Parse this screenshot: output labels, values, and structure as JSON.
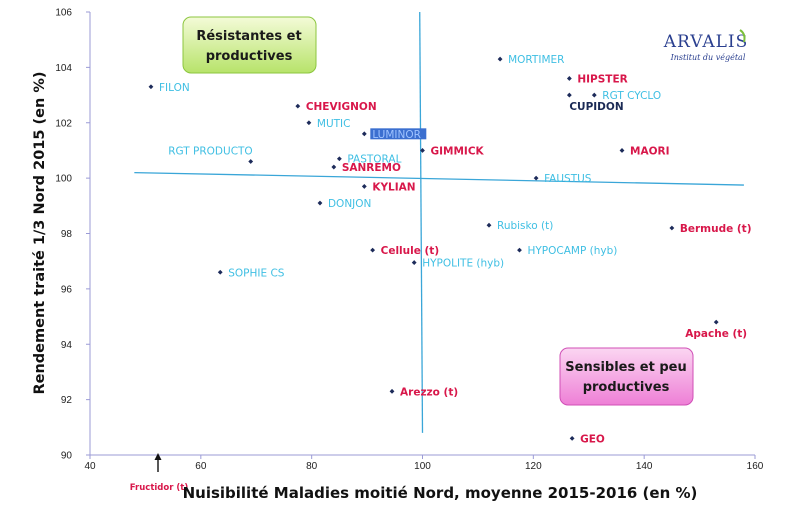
{
  "chart_data": {
    "type": "scatter",
    "xlabel": "Nuisibilité Maladies moitié Nord, moyenne 2015-2016 (en %)",
    "ylabel": "Rendement traité 1/3 Nord 2015 (en %)",
    "xlim": [
      40,
      160
    ],
    "ylim": [
      90,
      106
    ],
    "x_ticks": [
      "40",
      "60",
      "80",
      "100",
      "120",
      "140",
      "160"
    ],
    "y_ticks": [
      "90",
      "92",
      "94",
      "96",
      "98",
      "100",
      "102",
      "104",
      "106"
    ],
    "colors": {
      "cyan": "#3fbfe3",
      "red": "#d8174a",
      "dark": "#1b2a55",
      "line": "#3aa6d8"
    },
    "points": [
      {
        "name": "FILON",
        "x": 51,
        "y": 103.3,
        "color": "cyan"
      },
      {
        "name": "CHEVIGNON",
        "x": 77.5,
        "y": 102.6,
        "color": "red"
      },
      {
        "name": "MUTIC",
        "x": 79.5,
        "y": 102.0,
        "color": "cyan"
      },
      {
        "name": "RGT PRODUCTO",
        "x": 69,
        "y": 100.6,
        "color": "cyan"
      },
      {
        "name": "PASTORAL",
        "x": 85,
        "y": 100.7,
        "color": "cyan"
      },
      {
        "name": "SANREMO",
        "x": 84,
        "y": 100.4,
        "color": "red"
      },
      {
        "name": "KYLIAN",
        "x": 89.5,
        "y": 99.7,
        "color": "red"
      },
      {
        "name": "DONJON",
        "x": 81.5,
        "y": 99.1,
        "color": "cyan"
      },
      {
        "name": "LUMINOR",
        "x": 89.5,
        "y": 101.6,
        "color": "cyan",
        "highlight": true
      },
      {
        "name": "GIMMICK",
        "x": 100,
        "y": 101.0,
        "color": "red"
      },
      {
        "name": "MORTIMER",
        "x": 114,
        "y": 104.3,
        "color": "cyan"
      },
      {
        "name": "HIPSTER",
        "x": 126.5,
        "y": 103.6,
        "color": "red"
      },
      {
        "name": "RGT CYCLO",
        "x": 131,
        "y": 103.0,
        "color": "cyan"
      },
      {
        "name": "CUPIDON",
        "x": 126.5,
        "y": 103.0,
        "color": "dark"
      },
      {
        "name": "MAORI",
        "x": 136,
        "y": 101.0,
        "color": "red"
      },
      {
        "name": "FAUSTUS",
        "x": 120.5,
        "y": 100.0,
        "color": "cyan"
      },
      {
        "name": "Rubisko (t)",
        "x": 112,
        "y": 98.3,
        "color": "cyan"
      },
      {
        "name": "Bermude (t)",
        "x": 145,
        "y": 98.2,
        "color": "red"
      },
      {
        "name": "HYPOCAMP (hyb)",
        "x": 117.5,
        "y": 97.4,
        "color": "cyan"
      },
      {
        "name": "Cellule (t)",
        "x": 91,
        "y": 97.4,
        "color": "red"
      },
      {
        "name": "HYPOLITE (hyb)",
        "x": 98.5,
        "y": 96.95,
        "color": "cyan"
      },
      {
        "name": "SOPHIE CS",
        "x": 63.5,
        "y": 96.6,
        "color": "cyan"
      },
      {
        "name": "Apache (t)",
        "x": 153,
        "y": 94.8,
        "color": "red"
      },
      {
        "name": "Arezzo (t)",
        "x": 94.5,
        "y": 92.3,
        "color": "red"
      },
      {
        "name": "GEO",
        "x": 127,
        "y": 90.6,
        "color": "red"
      }
    ],
    "annotations": {
      "top_left_box": [
        "Résistantes et",
        "productives"
      ],
      "bottom_right_box": [
        "Sensibles et peu",
        "productives"
      ],
      "fructidor": "Fructidor (t)"
    },
    "reference_lines": {
      "vertical": {
        "x1": 99.5,
        "y1": 106,
        "x2": 100,
        "y2": 90.8
      },
      "horizontal": {
        "x1": 48,
        "y1": 100.2,
        "x2": 158,
        "y2": 99.75
      }
    }
  },
  "logo": {
    "main": "ARVALIS",
    "sub": "Institut du végétal"
  }
}
